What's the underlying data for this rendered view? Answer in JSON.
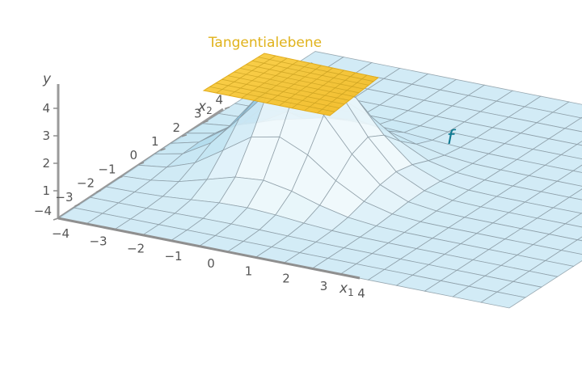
{
  "plane_label": "Tangentialebene",
  "surface_label": "f",
  "axes": {
    "y": {
      "label": "y",
      "ticks": [
        "1",
        "2",
        "3",
        "4"
      ]
    },
    "x1": {
      "label": "x",
      "sub": "1",
      "ticks": [
        "−4",
        "−3",
        "−2",
        "−1",
        "0",
        "1",
        "2",
        "3",
        "4"
      ]
    },
    "x2": {
      "label": "x",
      "sub": "2",
      "ticks": [
        "−4",
        "−3",
        "−2",
        "−1",
        "0",
        "1",
        "2",
        "3",
        "4"
      ]
    }
  },
  "colors": {
    "surface_light": "#eef8fc",
    "surface_mid": "#bfe3f2",
    "surface_dark": "#6fb4d6",
    "grid": "#8a9aa3",
    "plane": "#f7c431",
    "plane_grid": "#c9a021",
    "plane_label": "#e0b21a",
    "surface_label": "#0f7a92",
    "axis": "#8f8f8f",
    "text": "#555555"
  }
}
